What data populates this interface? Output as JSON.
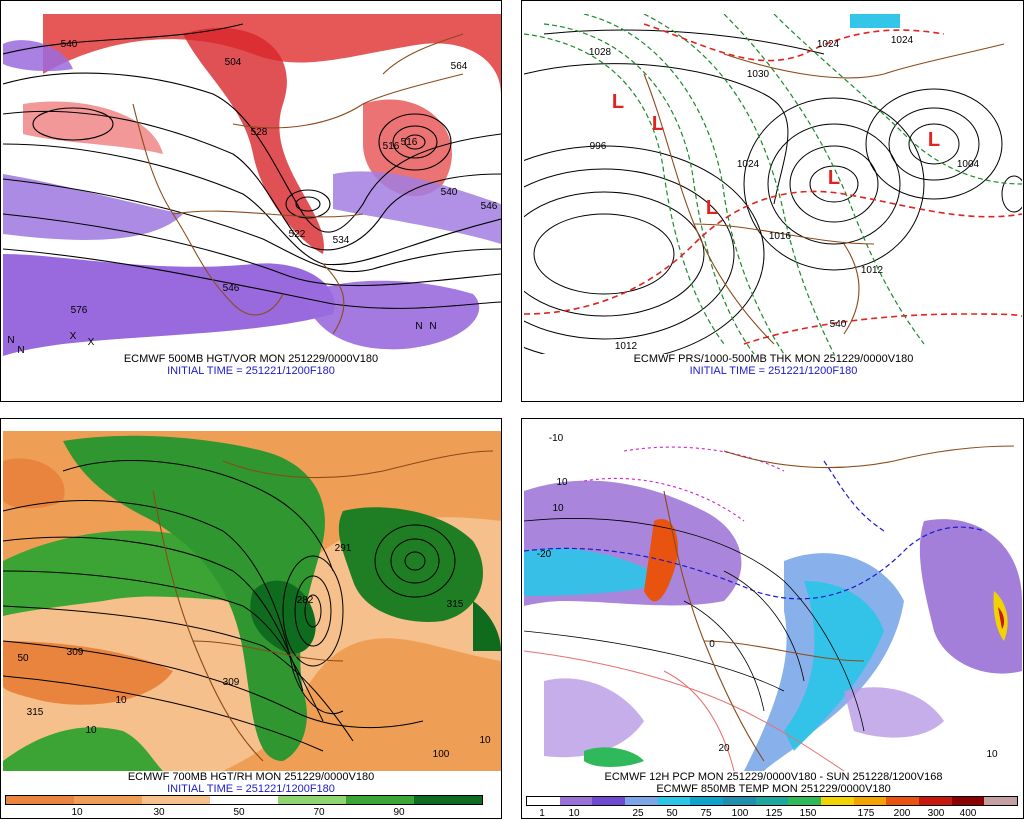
{
  "panels": [
    {
      "caption": "ECMWF 500MB HGT/VOR MON 251229/0000V180",
      "init": "INITIAL TIME = 251221/1200F180",
      "contour_labels": [
        "540",
        "504",
        "564",
        "528",
        "516",
        "540",
        "546",
        "522",
        "576",
        "516",
        "534",
        "546"
      ],
      "symbols": [
        "N",
        "N",
        "N",
        "N",
        "X",
        "X"
      ]
    },
    {
      "caption": "ECMWF PRS/1000-500MB THK MON 251229/0000V180",
      "init": "INITIAL TIME = 251221/1200F180",
      "contour_labels": [
        "1028",
        "1024",
        "996",
        "1024",
        "1004",
        "1012",
        "1012",
        "1016",
        "540",
        "1030",
        "1024"
      ],
      "symbols": [
        "L",
        "L",
        "L",
        "L",
        "L"
      ]
    },
    {
      "caption": "ECMWF 700MB HGT/RH MON 251229/0000V180",
      "init": "INITIAL TIME = 251221/1200F180",
      "contour_labels": [
        "309",
        "315",
        "282",
        "291",
        "309",
        "315",
        "10",
        "50",
        "10",
        "100",
        "10"
      ],
      "colorbar": {
        "colors": [
          "#e9843f",
          "#ef9e56",
          "#f5c08b",
          "#ffffff",
          "#8fd670",
          "#3ba435",
          "#0f6b1e"
        ],
        "ticks": [
          "10",
          "30",
          "50",
          "70",
          "90"
        ]
      }
    },
    {
      "caption": "ECMWF 12H PCP MON 251229/0000V180 - SUN 251228/1200V168",
      "init": "ECMWF 850MB TEMP MON 251229/0000V180",
      "contour_labels": [
        "10",
        "10",
        "-10",
        "-20",
        "0",
        "20",
        "10"
      ],
      "colorbar": {
        "colors": [
          "#ffffff",
          "#9a71d6",
          "#6e4ad0",
          "#7ba7e8",
          "#2bc5e8",
          "#10a3c9",
          "#1f8fae",
          "#1ca89f",
          "#2fb95a",
          "#f0d300",
          "#f1a300",
          "#e8540f",
          "#c8180e",
          "#8b0000",
          "#c4a0a5"
        ],
        "ticks": [
          "1",
          "10",
          "25",
          "50",
          "75",
          "100",
          "125",
          "150",
          "175",
          "200",
          "300",
          "400"
        ]
      }
    }
  ]
}
